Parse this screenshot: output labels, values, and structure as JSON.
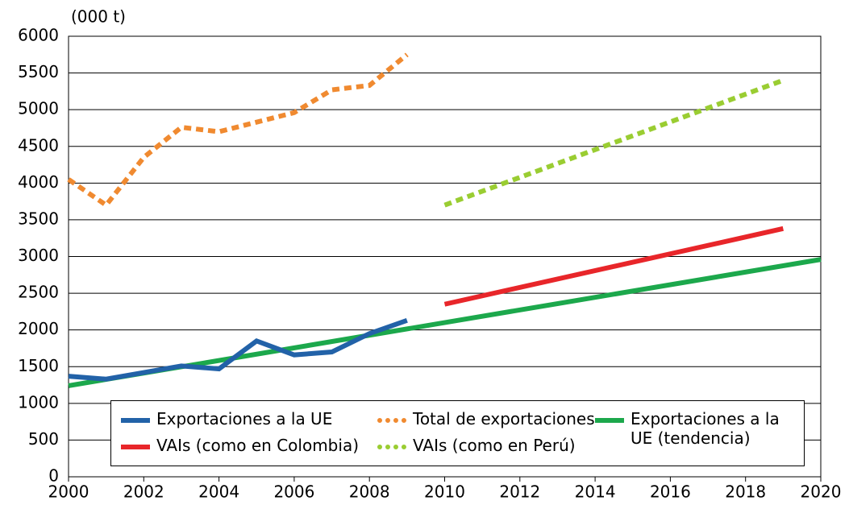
{
  "chart_data": {
    "type": "line",
    "y_unit_label": "(000 t)",
    "xlim": [
      2000,
      2020
    ],
    "xticks": [
      2000,
      2002,
      2004,
      2006,
      2008,
      2010,
      2012,
      2014,
      2016,
      2018,
      2020
    ],
    "ylim": [
      0,
      6000
    ],
    "yticks": [
      0,
      500,
      1000,
      1500,
      2000,
      2500,
      3000,
      3500,
      4000,
      4500,
      5000,
      5500,
      6000
    ],
    "grid": true,
    "legend": "bottom",
    "series": [
      {
        "name": "Exportaciones a la UE",
        "color": "#2262a8",
        "style": "solid",
        "x": [
          2000,
          2001,
          2002,
          2003,
          2004,
          2005,
          2006,
          2007,
          2008,
          2009
        ],
        "values": [
          1370,
          1330,
          1420,
          1510,
          1470,
          1850,
          1660,
          1700,
          1950,
          2130
        ]
      },
      {
        "name": "Total de exportaciones",
        "color": "#f08a30",
        "style": "dotted",
        "x": [
          2000,
          2001,
          2002,
          2003,
          2004,
          2005,
          2006,
          2007,
          2008,
          2009
        ],
        "values": [
          4050,
          3700,
          4350,
          4760,
          4700,
          4830,
          4960,
          5270,
          5330,
          5750
        ]
      },
      {
        "name": "Exportaciones a la UE (tendencia)",
        "color": "#1ca84c",
        "style": "solid",
        "x": [
          2000,
          2020
        ],
        "values": [
          1240,
          2960
        ]
      },
      {
        "name": "VAIs (como en Colombia)",
        "color": "#e8262a",
        "style": "solid",
        "x": [
          2010,
          2019
        ],
        "values": [
          2350,
          3380
        ]
      },
      {
        "name": "VAIs (como en Perú)",
        "color": "#9acd32",
        "style": "dotted",
        "x": [
          2010,
          2019
        ],
        "values": [
          3700,
          5400
        ]
      }
    ]
  }
}
